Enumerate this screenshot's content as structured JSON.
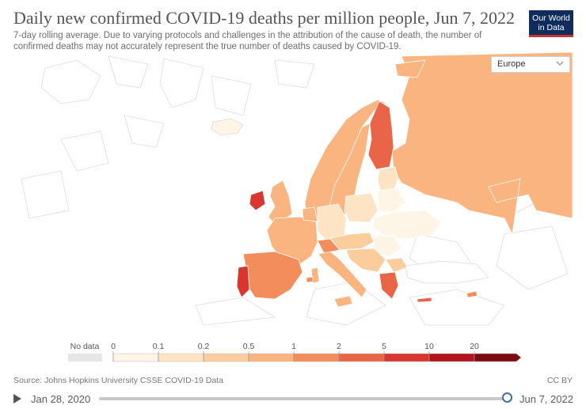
{
  "header": {
    "title": "Daily new confirmed COVID-19 deaths per million people, Jun 7, 2022",
    "subtitle": "7-day rolling average. Due to varying protocols and challenges in the attribution of the cause of death, the number of confirmed deaths may not accurately represent the true number of deaths caused by COVID-19."
  },
  "logo": {
    "line1": "Our World",
    "line2": "in Data"
  },
  "region_selector": {
    "value": "Europe"
  },
  "legend": {
    "no_data_label": "No data",
    "no_data_color": "#e6e6e6",
    "thresholds": [
      "0",
      "0.1",
      "0.2",
      "0.5",
      "1",
      "2",
      "5",
      "10",
      "20"
    ],
    "colors": [
      "#fff5e6",
      "#fde4c4",
      "#fccd9c",
      "#f9b47f",
      "#f48d5c",
      "#ea6447",
      "#d8362f",
      "#b3141b",
      "#7d0a10"
    ]
  },
  "footer": {
    "source": "Source: Johns Hopkins University CSSE COVID-19 Data",
    "license": "CC BY"
  },
  "timeline": {
    "start_date": "Jan 28, 2020",
    "end_date": "Jun 7, 2022",
    "position": 1.0
  }
}
